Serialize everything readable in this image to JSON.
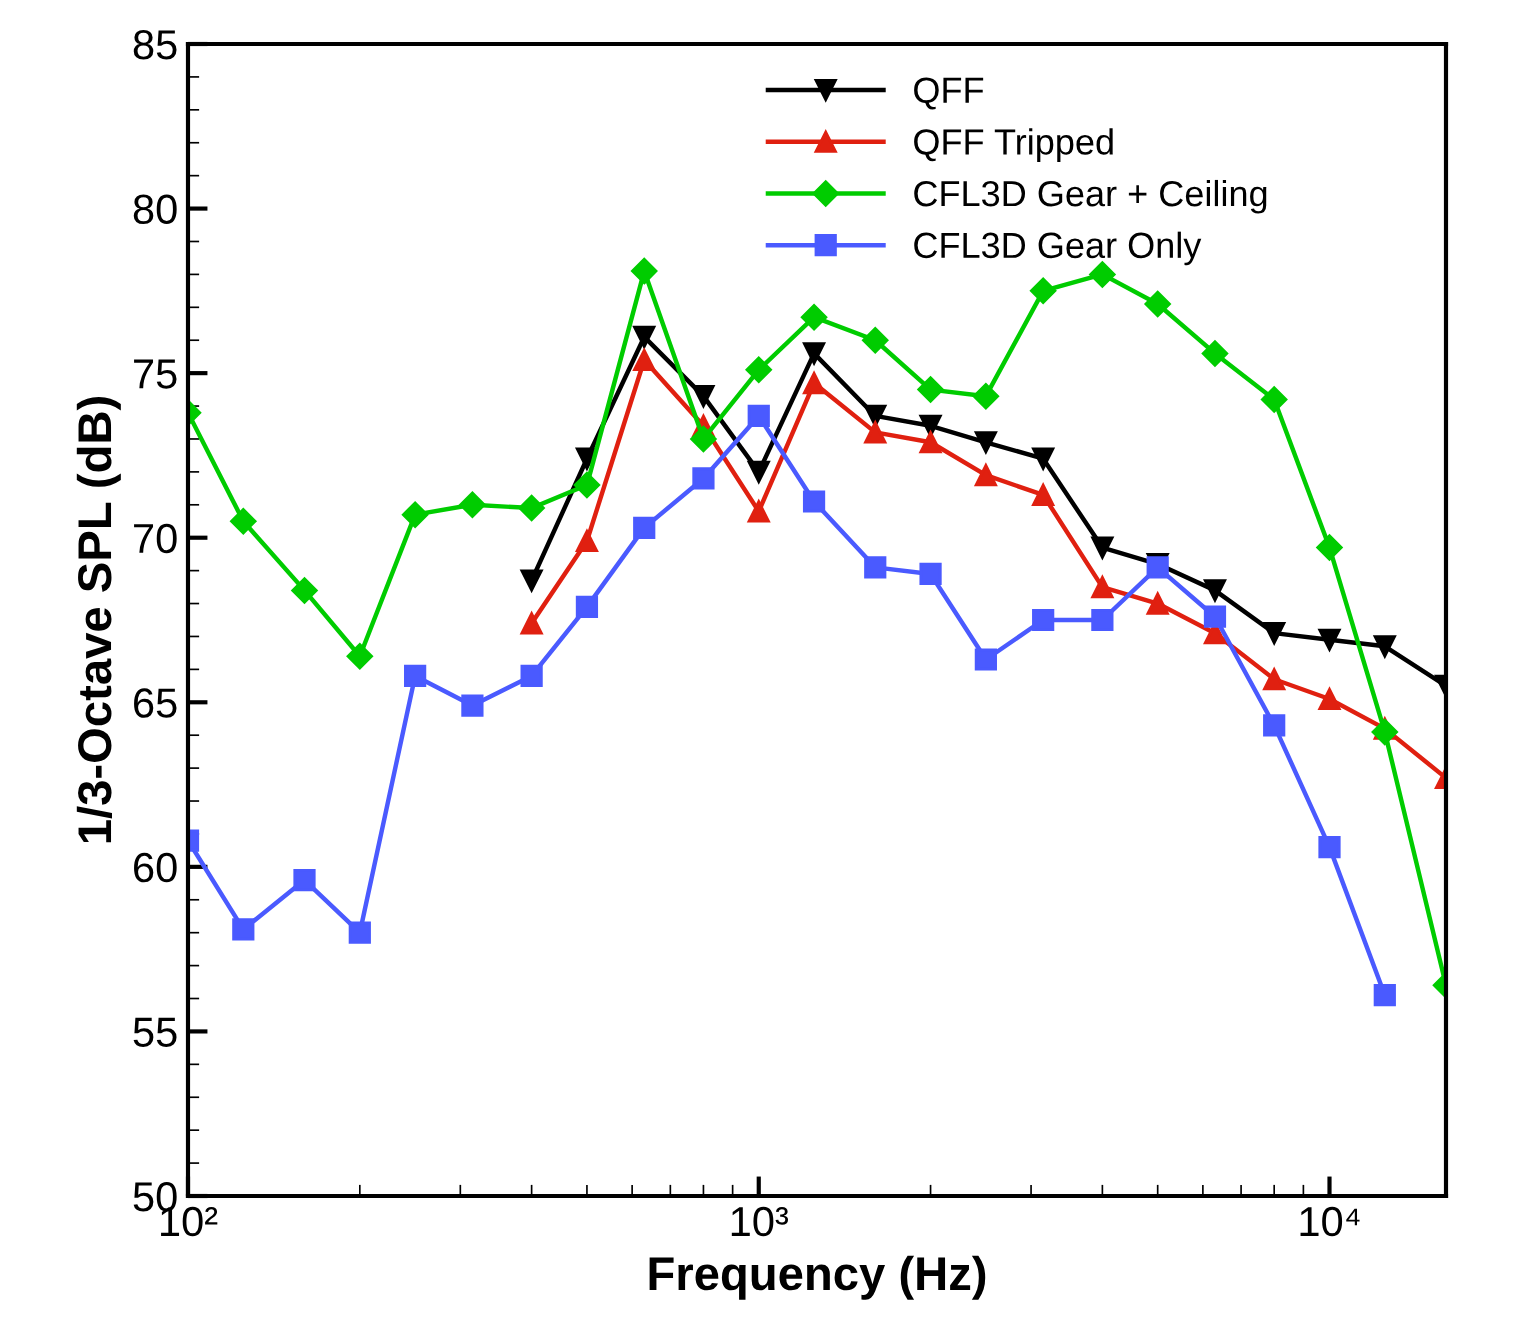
{
  "chart_data": {
    "type": "line",
    "xlabel": "Frequency (Hz)",
    "ylabel": "1/3-Octave SPL (dB)",
    "log": "x",
    "grid": false,
    "legend": "top",
    "x": [
      100,
      125,
      160,
      200,
      250,
      315,
      400,
      500,
      630,
      800,
      1000,
      1250,
      1600,
      2000,
      2500,
      3150,
      4000,
      5000,
      6300,
      8000,
      10000,
      12500,
      16000
    ],
    "xlim": [
      100,
      16000
    ],
    "xticks": [
      {
        "value": 100,
        "label": "10²"
      },
      {
        "value": 1000,
        "label": "10³"
      },
      {
        "value": 10000,
        "label": "10⁴"
      }
    ],
    "ylim": [
      50,
      85
    ],
    "yticks": [
      50,
      55,
      60,
      65,
      70,
      75,
      80,
      85
    ],
    "series": [
      {
        "name": "QFF",
        "color": "#000000",
        "marker": "triangle_down",
        "values": [
          null,
          null,
          null,
          null,
          null,
          null,
          68.7,
          72.4,
          76.1,
          74.3,
          72.0,
          75.6,
          73.7,
          73.4,
          72.9,
          72.4,
          69.7,
          69.2,
          68.4,
          67.1,
          66.9,
          66.7,
          65.5
        ]
      },
      {
        "name": "QFF Tripped",
        "color": "#e02010",
        "marker": "triangle",
        "values": [
          null,
          null,
          null,
          null,
          null,
          null,
          67.4,
          69.9,
          75.4,
          73.4,
          70.8,
          74.7,
          73.2,
          72.9,
          71.9,
          71.3,
          68.5,
          68.0,
          67.1,
          65.7,
          65.1,
          64.2,
          62.7
        ]
      },
      {
        "name": "CFL3D Gear + Ceiling",
        "color": "#00cc00",
        "marker": "diamond",
        "values": [
          73.8,
          70.5,
          68.4,
          66.4,
          70.7,
          71.0,
          70.9,
          71.6,
          78.1,
          73.0,
          75.1,
          76.7,
          76.0,
          74.5,
          74.3,
          77.5,
          78.0,
          77.1,
          75.6,
          74.2,
          69.7,
          64.1,
          56.4
        ]
      },
      {
        "name": "CFL3D Gear Only",
        "color": "#4a5aff",
        "marker": "square",
        "values": [
          60.8,
          58.1,
          59.6,
          58.0,
          65.8,
          64.9,
          65.8,
          67.9,
          70.3,
          71.8,
          73.7,
          71.1,
          69.1,
          68.9,
          66.3,
          67.5,
          67.5,
          69.1,
          67.6,
          64.3,
          60.6,
          56.1,
          null
        ]
      }
    ]
  }
}
